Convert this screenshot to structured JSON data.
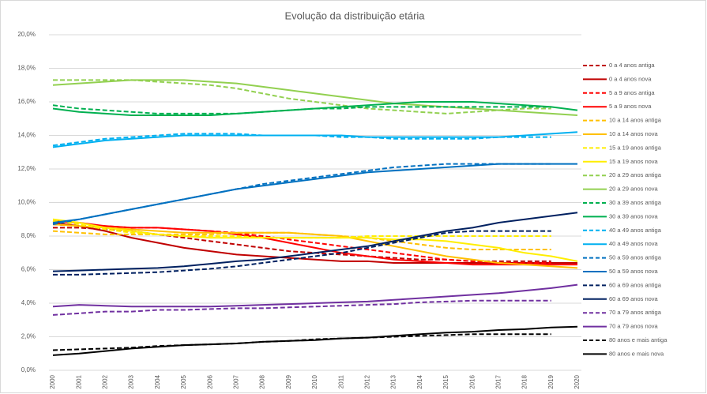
{
  "chart_data": {
    "type": "line",
    "title": "Evolução da distribuição etária",
    "categories": [
      "2000",
      "2001",
      "2002",
      "2003",
      "2004",
      "2005",
      "2006",
      "2007",
      "2008",
      "2009",
      "2010",
      "2011",
      "2012",
      "2013",
      "2014",
      "2015",
      "2016",
      "2017",
      "2018",
      "2019",
      "2020"
    ],
    "ylim": [
      0,
      20
    ],
    "yticks": [
      {
        "value": 0,
        "label": "0,0%"
      },
      {
        "value": 2,
        "label": "2,0%"
      },
      {
        "value": 4,
        "label": "4,0%"
      },
      {
        "value": 6,
        "label": "6,0%"
      },
      {
        "value": 8,
        "label": "8,0%"
      },
      {
        "value": 10,
        "label": "10,0%"
      },
      {
        "value": 12,
        "label": "12,0%"
      },
      {
        "value": 14,
        "label": "14,0%"
      },
      {
        "value": 16,
        "label": "16,0%"
      },
      {
        "value": 18,
        "label": "18,0%"
      },
      {
        "value": 20,
        "label": "20,0%"
      }
    ],
    "grid": true,
    "legend": "right",
    "series": [
      {
        "name": "0 a 4 anos antiga",
        "color": "#c00000",
        "dashed": true,
        "values": [
          8.5,
          8.5,
          8.4,
          8.3,
          8.1,
          7.9,
          7.7,
          7.5,
          7.3,
          7.1,
          7.0,
          6.9,
          6.8,
          6.7,
          6.6,
          6.6,
          6.5,
          6.5,
          6.5,
          6.5,
          null
        ]
      },
      {
        "name": "0 a 4 anos nova",
        "color": "#c00000",
        "dashed": false,
        "values": [
          8.8,
          8.6,
          8.3,
          7.9,
          7.6,
          7.3,
          7.1,
          6.9,
          6.8,
          6.7,
          6.6,
          6.5,
          6.5,
          6.4,
          6.4,
          6.4,
          6.4,
          6.4,
          6.4,
          6.4,
          6.4
        ]
      },
      {
        "name": "5 a 9 anos antiga",
        "color": "#ff0000",
        "dashed": true,
        "values": [
          8.7,
          8.6,
          8.6,
          8.5,
          8.5,
          8.4,
          8.3,
          8.2,
          8.0,
          7.8,
          7.6,
          7.4,
          7.2,
          7.0,
          6.8,
          6.6,
          6.5,
          6.4,
          6.4,
          6.4,
          null
        ]
      },
      {
        "name": "5 a 9 anos nova",
        "color": "#ff0000",
        "dashed": false,
        "values": [
          8.9,
          8.8,
          8.6,
          8.5,
          8.5,
          8.4,
          8.3,
          8.1,
          7.9,
          7.6,
          7.3,
          7.0,
          6.8,
          6.6,
          6.5,
          6.4,
          6.3,
          6.3,
          6.3,
          6.3,
          6.3
        ]
      },
      {
        "name": "10 a 14 anos antiga",
        "color": "#ffc000",
        "dashed": true,
        "values": [
          8.3,
          8.2,
          8.1,
          8.1,
          8.1,
          8.1,
          8.1,
          8.2,
          8.2,
          8.2,
          8.1,
          8.0,
          7.9,
          7.7,
          7.5,
          7.3,
          7.2,
          7.2,
          7.2,
          7.2,
          null
        ]
      },
      {
        "name": "10 a 14 anos nova",
        "color": "#ffc000",
        "dashed": false,
        "values": [
          8.7,
          8.6,
          8.5,
          8.4,
          8.3,
          8.2,
          8.2,
          8.2,
          8.2,
          8.2,
          8.1,
          8.0,
          7.7,
          7.4,
          7.1,
          6.8,
          6.6,
          6.4,
          6.3,
          6.2,
          6.1
        ]
      },
      {
        "name": "15 a 19 anos antiga",
        "color": "#ffee00",
        "dashed": true,
        "values": [
          8.9,
          8.7,
          8.4,
          8.2,
          8.1,
          8.0,
          8.0,
          8.0,
          7.9,
          7.9,
          7.9,
          7.9,
          8.0,
          8.0,
          8.0,
          8.0,
          8.0,
          8.0,
          8.0,
          8.0,
          null
        ]
      },
      {
        "name": "15 a 19 anos nova",
        "color": "#ffee00",
        "dashed": false,
        "values": [
          9.0,
          8.8,
          8.5,
          8.3,
          8.1,
          8.0,
          7.9,
          7.9,
          7.9,
          7.9,
          7.9,
          7.9,
          7.9,
          7.8,
          7.8,
          7.7,
          7.5,
          7.3,
          7.0,
          6.8,
          6.5
        ]
      },
      {
        "name": "20 a 29 anos antiga",
        "color": "#92d050",
        "dashed": true,
        "values": [
          17.3,
          17.3,
          17.3,
          17.3,
          17.2,
          17.1,
          17.0,
          16.8,
          16.5,
          16.2,
          16.0,
          15.8,
          15.6,
          15.5,
          15.4,
          15.3,
          15.4,
          15.5,
          15.6,
          15.6,
          null
        ]
      },
      {
        "name": "20 a 29 anos nova",
        "color": "#92d050",
        "dashed": false,
        "values": [
          17.0,
          17.1,
          17.2,
          17.3,
          17.3,
          17.3,
          17.2,
          17.1,
          16.9,
          16.7,
          16.5,
          16.3,
          16.1,
          15.9,
          15.8,
          15.7,
          15.6,
          15.5,
          15.4,
          15.3,
          15.2
        ]
      },
      {
        "name": "30 a 39 anos antiga",
        "color": "#00b050",
        "dashed": true,
        "values": [
          15.8,
          15.6,
          15.5,
          15.4,
          15.3,
          15.3,
          15.3,
          15.3,
          15.4,
          15.5,
          15.6,
          15.6,
          15.7,
          15.7,
          15.7,
          15.7,
          15.7,
          15.7,
          15.7,
          15.7,
          null
        ]
      },
      {
        "name": "30 a 39 anos nova",
        "color": "#00b050",
        "dashed": false,
        "values": [
          15.6,
          15.4,
          15.3,
          15.2,
          15.2,
          15.2,
          15.2,
          15.3,
          15.4,
          15.5,
          15.6,
          15.7,
          15.8,
          15.9,
          16.0,
          16.0,
          16.0,
          15.9,
          15.8,
          15.7,
          15.5
        ]
      },
      {
        "name": "40 a 49 anos antiga",
        "color": "#00b0f0",
        "dashed": true,
        "values": [
          13.4,
          13.6,
          13.8,
          13.9,
          14.0,
          14.1,
          14.1,
          14.1,
          14.0,
          14.0,
          14.0,
          13.9,
          13.9,
          13.8,
          13.8,
          13.8,
          13.8,
          13.9,
          13.9,
          13.9,
          null
        ]
      },
      {
        "name": "40 a 49 anos nova",
        "color": "#00b0f0",
        "dashed": false,
        "values": [
          13.3,
          13.5,
          13.7,
          13.8,
          13.9,
          14.0,
          14.0,
          14.0,
          14.0,
          14.0,
          14.0,
          14.0,
          13.9,
          13.9,
          13.9,
          13.9,
          13.9,
          13.9,
          14.0,
          14.1,
          14.2
        ]
      },
      {
        "name": "50 a 59 anos antiga",
        "color": "#0070c0",
        "dashed": true,
        "values": [
          8.7,
          9.0,
          9.3,
          9.6,
          9.9,
          10.2,
          10.5,
          10.8,
          11.1,
          11.3,
          11.5,
          11.7,
          11.9,
          12.1,
          12.2,
          12.3,
          12.3,
          12.3,
          12.3,
          12.3,
          null
        ]
      },
      {
        "name": "50 a 59 anos nova",
        "color": "#0070c0",
        "dashed": false,
        "values": [
          8.8,
          9.0,
          9.3,
          9.6,
          9.9,
          10.2,
          10.5,
          10.8,
          11.0,
          11.2,
          11.4,
          11.6,
          11.8,
          11.9,
          12.0,
          12.1,
          12.2,
          12.3,
          12.3,
          12.3,
          12.3
        ]
      },
      {
        "name": "60 a 69 anos antiga",
        "color": "#002060",
        "dashed": true,
        "values": [
          5.7,
          5.7,
          5.75,
          5.8,
          5.85,
          5.95,
          6.05,
          6.2,
          6.4,
          6.6,
          6.8,
          7.0,
          7.3,
          7.6,
          7.9,
          8.2,
          8.3,
          8.3,
          8.3,
          8.3,
          null
        ]
      },
      {
        "name": "60 a 69 anos nova",
        "color": "#002060",
        "dashed": false,
        "values": [
          5.9,
          5.95,
          6.0,
          6.05,
          6.1,
          6.2,
          6.35,
          6.5,
          6.6,
          6.8,
          7.0,
          7.2,
          7.4,
          7.7,
          8.0,
          8.3,
          8.5,
          8.8,
          9.0,
          9.2,
          9.4
        ]
      },
      {
        "name": "70 a 79 anos antiga",
        "color": "#7030a0",
        "dashed": true,
        "values": [
          3.3,
          3.4,
          3.5,
          3.5,
          3.6,
          3.6,
          3.65,
          3.7,
          3.7,
          3.75,
          3.8,
          3.85,
          3.9,
          3.95,
          4.05,
          4.1,
          4.15,
          4.15,
          4.15,
          4.15,
          null
        ]
      },
      {
        "name": "70 a 79 anos nova",
        "color": "#7030a0",
        "dashed": false,
        "values": [
          3.8,
          3.9,
          3.85,
          3.8,
          3.8,
          3.8,
          3.8,
          3.85,
          3.9,
          3.95,
          4.0,
          4.05,
          4.1,
          4.2,
          4.3,
          4.4,
          4.5,
          4.6,
          4.75,
          4.9,
          5.1
        ]
      },
      {
        "name": "80 anos e mais antiga",
        "color": "#000000",
        "dashed": true,
        "values": [
          1.2,
          1.25,
          1.3,
          1.35,
          1.45,
          1.5,
          1.55,
          1.6,
          1.7,
          1.75,
          1.85,
          1.9,
          1.95,
          2.0,
          2.05,
          2.1,
          2.15,
          2.15,
          2.15,
          2.15,
          null
        ]
      },
      {
        "name": "80 anos e mais nova",
        "color": "#000000",
        "dashed": false,
        "values": [
          0.9,
          1.0,
          1.15,
          1.3,
          1.4,
          1.5,
          1.55,
          1.6,
          1.7,
          1.75,
          1.8,
          1.9,
          1.95,
          2.05,
          2.15,
          2.25,
          2.3,
          2.4,
          2.45,
          2.55,
          2.6
        ]
      }
    ]
  }
}
